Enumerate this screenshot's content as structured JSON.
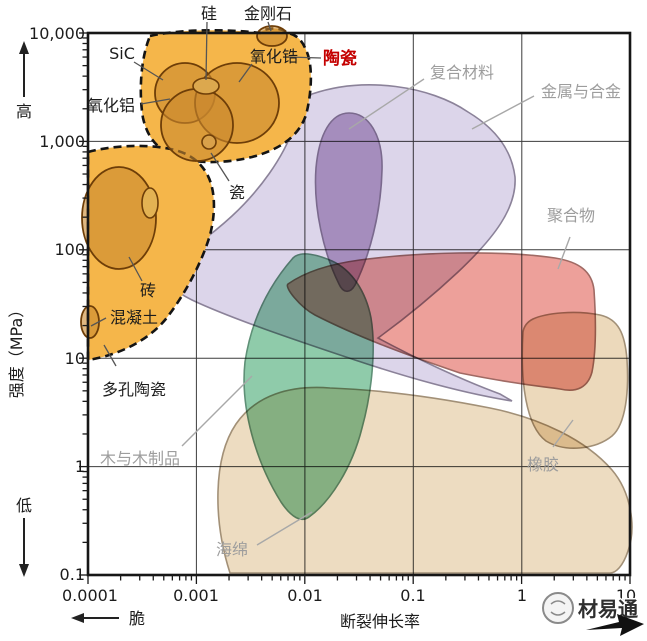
{
  "watermark": {
    "brand": "材易通"
  },
  "chart_data": {
    "type": "area",
    "title": "",
    "xlabel": "断裂伸长率",
    "ylabel": "强度（MPa）",
    "x_ticks": [
      "0.0001",
      "0.001",
      "0.01",
      "0.1",
      "1",
      "10"
    ],
    "y_ticks": [
      "10,000",
      "1,000",
      "100",
      "10",
      "1",
      "0.1"
    ],
    "xlim": [
      0.0001,
      10
    ],
    "ylim": [
      0.1,
      10000
    ],
    "x_scale": "log",
    "y_scale": "log",
    "grid": true,
    "annotations": {
      "y_high": "高",
      "y_low": "低",
      "x_brittle": "脆"
    },
    "regions": [
      {
        "id": "sponge",
        "label": "海绵",
        "label_color": "#9d9d9d",
        "fill": "#eddcc1",
        "stroke": "#a29077",
        "strength_MPa": [
          0.1,
          6
        ],
        "elongation": [
          0.0015,
          10
        ]
      },
      {
        "id": "rubber",
        "label": "橡胶",
        "label_color": "#9d9d9d",
        "fill": "#ecd9bb",
        "stroke": "#a29077",
        "strength_MPa": [
          1.4,
          27
        ],
        "elongation": [
          1,
          10
        ]
      },
      {
        "id": "metals",
        "label": "金属与合金",
        "label_color": "#9d9d9d",
        "fill": "#dcd5ea",
        "stroke": "#8b8299",
        "strength_MPa": [
          4,
          2800
        ],
        "elongation": [
          0.0005,
          0.9
        ]
      },
      {
        "id": "composites",
        "label": "复合材料",
        "label_color": "#9d9d9d",
        "fill": "#c0a9ce",
        "stroke": "#8d7d9a",
        "strength_MPa": [
          40,
          1800
        ],
        "elongation": [
          0.013,
          0.05
        ]
      },
      {
        "id": "wood",
        "label": "木与木制品",
        "label_color": "#9d9d9d",
        "fill": "#8fcbaa",
        "stroke": "#5f9077",
        "strength_MPa": [
          0.3,
          100
        ],
        "elongation": [
          0.0027,
          0.045
        ]
      },
      {
        "id": "polymers",
        "label": "聚合物",
        "label_color": "#9d9d9d",
        "fill": "#eda09a",
        "stroke": "#a06a64",
        "strength_MPa": [
          5,
          100
        ],
        "elongation": [
          0.007,
          5
        ]
      },
      {
        "id": "ceramics",
        "label": "陶瓷",
        "label_color": "#c40000",
        "fill": "#f5b64a",
        "stroke": "#141414",
        "strength_MPa": [
          10,
          10000
        ],
        "elongation": [
          0.0001,
          0.011
        ]
      }
    ],
    "materials": [
      {
        "label": "硅",
        "strength_MPa": 3200,
        "elongation": 0.0012
      },
      {
        "label": "金刚石",
        "strength_MPa": 10000,
        "elongation": 0.005
      },
      {
        "label": "SiC",
        "strength_MPa": 2800,
        "elongation": 0.0008
      },
      {
        "label": "氧化锆",
        "strength_MPa": 2250,
        "elongation": 0.0024
      },
      {
        "label": "氧化铝",
        "strength_MPa": 1400,
        "elongation": 0.001
      },
      {
        "label": "瓷",
        "strength_MPa": 980,
        "elongation": 0.0013
      },
      {
        "label": "砖",
        "strength_MPa": 195,
        "elongation": 0.0002
      },
      {
        "label": "混凝土",
        "strength_MPa": 21,
        "elongation": 0.0001
      },
      {
        "label": "多孔陶瓷",
        "strength_MPa": 10,
        "elongation": 0.0002
      }
    ]
  }
}
